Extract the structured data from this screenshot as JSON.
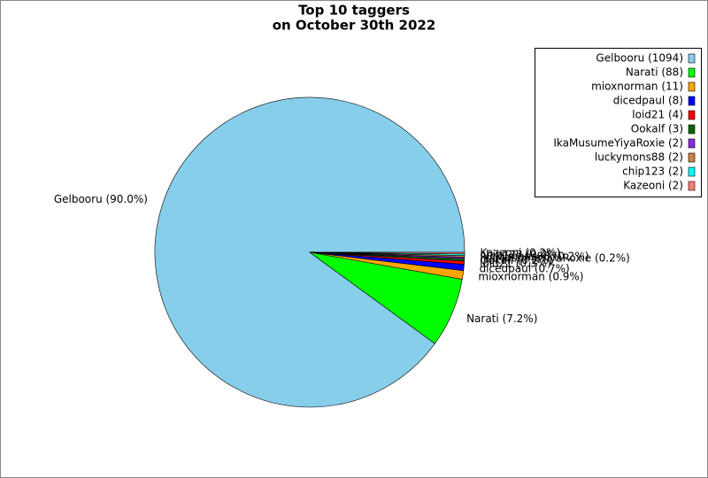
{
  "chart_data": {
    "type": "pie",
    "title": [
      "Top 10 taggers",
      "on October 30th 2022"
    ],
    "categories": [
      "Gelbooru",
      "Narati",
      "mioxnorman",
      "dicedpaul",
      "loid21",
      "Ookalf",
      "IkaMusumeYiyaRoxie",
      "luckymons88",
      "chip123",
      "Kazeoni"
    ],
    "values": [
      1094,
      88,
      11,
      8,
      4,
      3,
      2,
      2,
      2,
      2
    ],
    "legend_labels": [
      "Gelbooru (1094)",
      "Narati (88)",
      "mioxnorman (11)",
      "dicedpaul (8)",
      "loid21 (4)",
      "Ookalf (3)",
      "IkaMusumeYiyaRoxie (2)",
      "luckymons88 (2)",
      "chip123 (2)",
      "Kazeoni (2)"
    ],
    "slice_labels": [
      "Gelbooru (90.0%)",
      "Narati (7.2%)",
      "mioxnorman (0.9%)",
      "dicedpaul (0.7%)",
      "loid21 (0.3%)",
      "Ookalf (0.2%)",
      "IkaMusumeYiyaRoxie (0.2%)",
      "luckymons88 (0.2%)",
      "chip123 (0.2%)",
      "Kazeoni (0.2%)"
    ],
    "colors": [
      "#87ceeb",
      "#00ff00",
      "#ffa500",
      "#0000ff",
      "#ff0000",
      "#006400",
      "#8a2be2",
      "#cd853f",
      "#00ffff",
      "#fa8072"
    ],
    "legend": "upper right"
  }
}
